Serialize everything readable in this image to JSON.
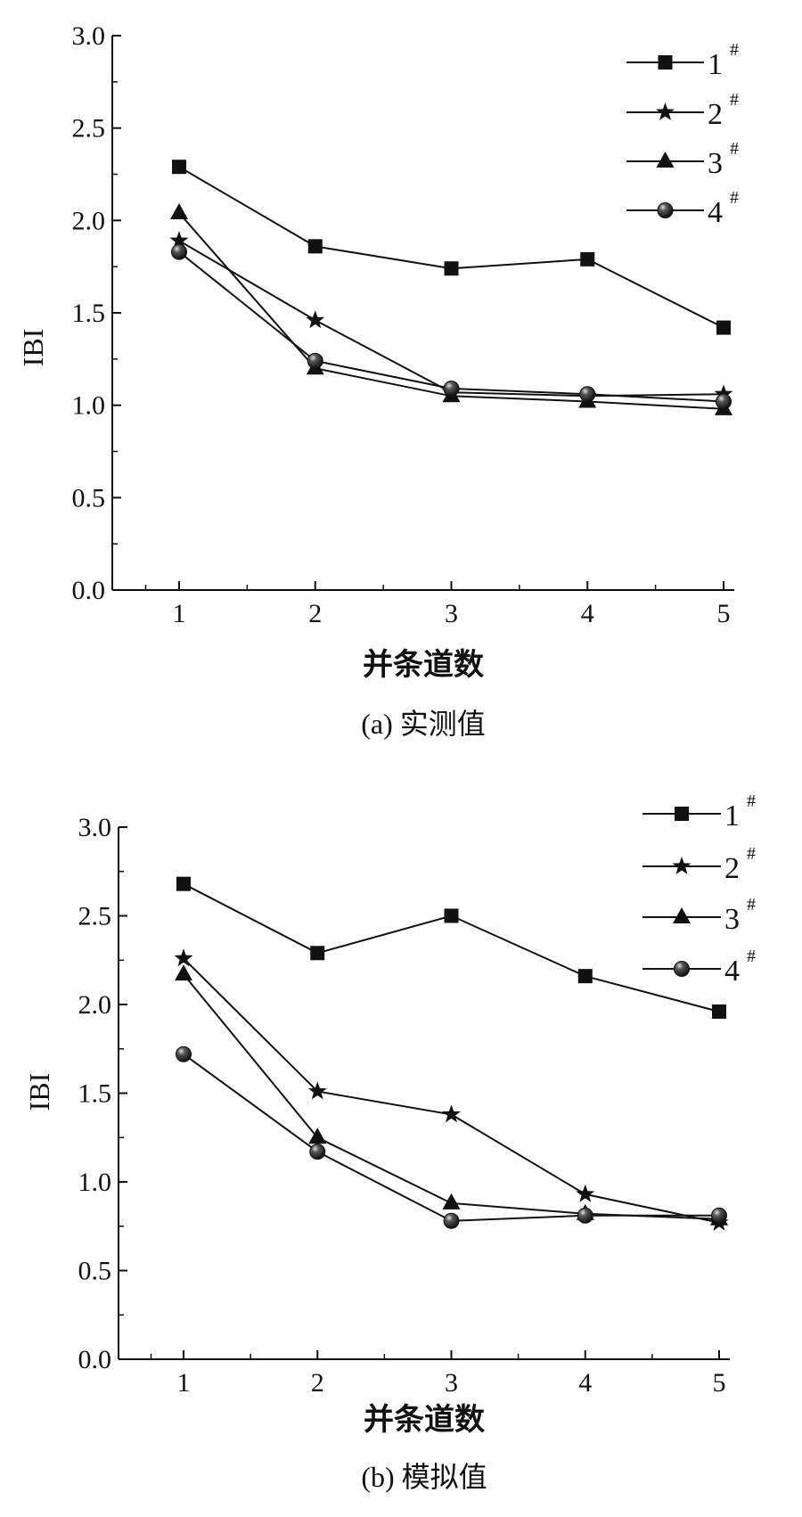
{
  "chart_data": [
    {
      "type": "line",
      "title": "",
      "caption": "(a) 实测值",
      "xlabel": "并条道数",
      "ylabel": "IBI",
      "x": [
        1,
        2,
        3,
        4,
        5
      ],
      "xticks": [
        "1",
        "2",
        "3",
        "4",
        "5"
      ],
      "yticks": [
        "0.0",
        "0.5",
        "1.0",
        "1.5",
        "2.0",
        "2.5",
        "3.0"
      ],
      "ylim": [
        0,
        3.0
      ],
      "xlim": [
        0.5,
        5
      ],
      "grid": false,
      "legend_position": "top-right",
      "series": [
        {
          "name": "1#",
          "label": "1",
          "sup": "#",
          "marker": "square",
          "values": [
            2.29,
            1.86,
            1.74,
            1.79,
            1.42
          ]
        },
        {
          "name": "2#",
          "label": "2",
          "sup": "#",
          "marker": "star",
          "values": [
            1.89,
            1.46,
            1.07,
            1.05,
            1.06
          ]
        },
        {
          "name": "3#",
          "label": "3",
          "sup": "#",
          "marker": "triangle",
          "values": [
            2.04,
            1.2,
            1.05,
            1.02,
            0.98
          ]
        },
        {
          "name": "4#",
          "label": "4",
          "sup": "#",
          "marker": "sphere",
          "values": [
            1.83,
            1.24,
            1.09,
            1.06,
            1.02
          ]
        }
      ]
    },
    {
      "type": "line",
      "title": "",
      "caption": "(b) 模拟值",
      "xlabel": "并条道数",
      "ylabel": "IBI",
      "x": [
        1,
        2,
        3,
        4,
        5
      ],
      "xticks": [
        "1",
        "2",
        "3",
        "4",
        "5"
      ],
      "yticks": [
        "0.0",
        "0.5",
        "1.0",
        "1.5",
        "2.0",
        "2.5",
        "3.0"
      ],
      "ylim": [
        0,
        3.0
      ],
      "xlim": [
        0.5,
        5
      ],
      "grid": false,
      "legend_position": "top-right",
      "series": [
        {
          "name": "1#",
          "label": "1",
          "sup": "#",
          "marker": "square",
          "values": [
            2.68,
            2.29,
            2.5,
            2.16,
            1.96
          ]
        },
        {
          "name": "2#",
          "label": "2",
          "sup": "#",
          "marker": "star",
          "values": [
            2.26,
            1.51,
            1.38,
            0.93,
            0.77
          ]
        },
        {
          "name": "3#",
          "label": "3",
          "sup": "#",
          "marker": "triangle",
          "values": [
            2.17,
            1.25,
            0.88,
            0.82,
            0.79
          ]
        },
        {
          "name": "4#",
          "label": "4",
          "sup": "#",
          "marker": "sphere",
          "values": [
            1.72,
            1.17,
            0.78,
            0.81,
            0.81
          ]
        }
      ]
    }
  ]
}
